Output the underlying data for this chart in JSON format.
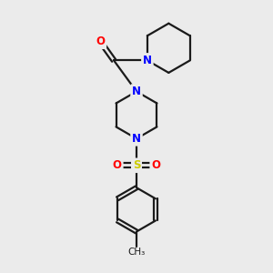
{
  "bg_color": "#ebebeb",
  "bond_color": "#1a1a1a",
  "N_color": "#0000ff",
  "O_color": "#ff0000",
  "S_color": "#cccc00",
  "line_width": 1.6,
  "figsize": [
    3.0,
    3.0
  ],
  "dpi": 100,
  "xlim": [
    0,
    10
  ],
  "ylim": [
    0,
    10
  ]
}
